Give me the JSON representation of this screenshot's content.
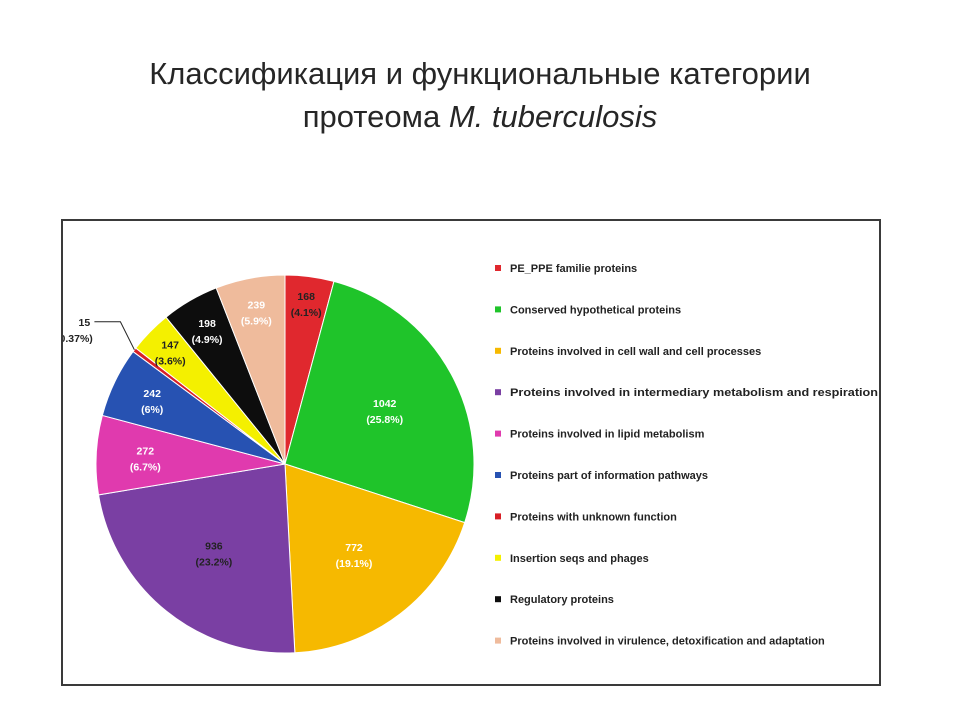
{
  "slide": {
    "title_line1": "Классификация и функциональные категории",
    "title_line2_prefix": "протеома ",
    "title_line2_italic": "M. tuberculosis"
  },
  "chart_data": {
    "type": "pie",
    "title": "",
    "legend_position": "right",
    "slices": [
      {
        "label": "PE_PPE familie proteins",
        "value": 168,
        "percent_label": "(4.1%)",
        "color": "#e0282e"
      },
      {
        "label": "Conserved hypothetical proteins",
        "value": 1042,
        "percent_label": "(25.8%)",
        "color": "#1fc42a"
      },
      {
        "label": "Proteins involved in cell wall and cell processes",
        "value": 772,
        "percent_label": "(19.1%)",
        "color": "#f6b900"
      },
      {
        "label": "Proteins involved in intermediary metabolism and respiration",
        "value": 936,
        "percent_label": "(23.2%)",
        "color": "#7a3fa3"
      },
      {
        "label": "Proteins involved in lipid metabolism",
        "value": 272,
        "percent_label": "(6.7%)",
        "color": "#e03aae"
      },
      {
        "label": "Proteins part of information pathways",
        "value": 242,
        "percent_label": "(6%)",
        "color": "#2752b2"
      },
      {
        "label": "Proteins with unknown function",
        "value": 15,
        "percent_label": "(0.37%)",
        "color": "#d81f26"
      },
      {
        "label": "Insertion seqs and phages",
        "value": 147,
        "percent_label": "(3.6%)",
        "color": "#f4f000"
      },
      {
        "label": "Regulatory proteins",
        "value": 198,
        "percent_label": "(4.9%)",
        "color": "#0d0d0d"
      },
      {
        "label": "Proteins involved in virulence, detoxification and adaptation",
        "value": 239,
        "percent_label": "(5.9%)",
        "color": "#efbb9c"
      }
    ]
  }
}
